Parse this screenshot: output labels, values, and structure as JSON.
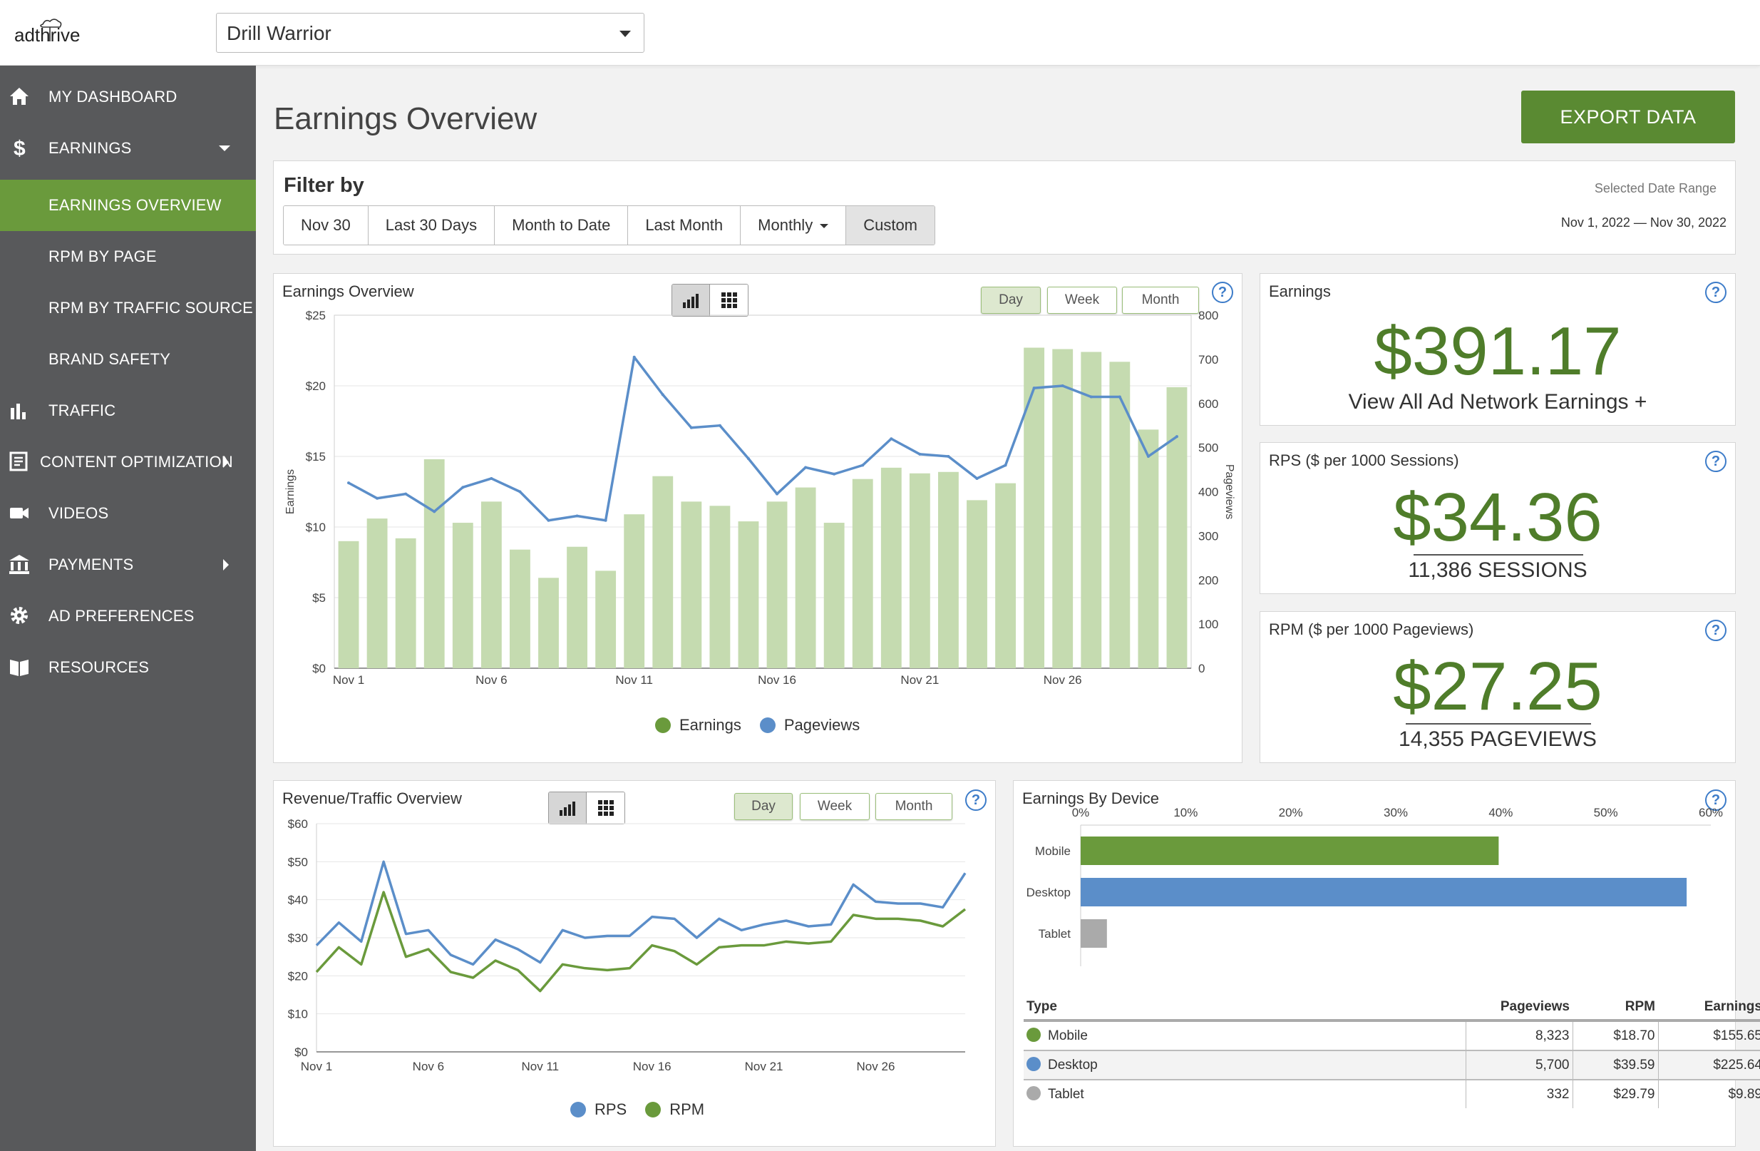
{
  "brand": {
    "logo_text": "adthrive"
  },
  "site_select": {
    "value": "Drill Warrior"
  },
  "sidebar": {
    "items": [
      {
        "label": "MY DASHBOARD",
        "icon": "home-icon"
      },
      {
        "label": "EARNINGS",
        "icon": "dollar-icon"
      },
      {
        "label": "EARNINGS OVERVIEW",
        "active": true
      },
      {
        "label": "RPM BY PAGE"
      },
      {
        "label": "RPM BY TRAFFIC SOURCE"
      },
      {
        "label": "BRAND SAFETY"
      },
      {
        "label": "TRAFFIC",
        "icon": "bar-chart-icon"
      },
      {
        "label": "CONTENT OPTIMIZATION",
        "icon": "document-icon"
      },
      {
        "label": "VIDEOS",
        "icon": "video-camera-icon"
      },
      {
        "label": "PAYMENTS",
        "icon": "bank-icon"
      },
      {
        "label": "AD PREFERENCES",
        "icon": "gear-icon"
      },
      {
        "label": "RESOURCES",
        "icon": "book-icon"
      }
    ]
  },
  "page": {
    "title": "Earnings Overview",
    "export_label": "EXPORT DATA"
  },
  "filter": {
    "title": "Filter by",
    "options": [
      "Nov 30",
      "Last 30 Days",
      "Month to Date",
      "Last Month",
      "Monthly",
      "Custom"
    ],
    "selected": "Custom",
    "date_range_label": "Selected Date Range",
    "date_range_value": "Nov 1, 2022 — Nov 30, 2022"
  },
  "periods": [
    "Day",
    "Week",
    "Month"
  ],
  "selected_period": "Day",
  "earnings_chart": {
    "title": "Earnings Overview",
    "legend": [
      "Earnings",
      "Pageviews"
    ]
  },
  "revenue_chart": {
    "title": "Revenue/Traffic Overview",
    "legend": [
      "RPS",
      "RPM"
    ]
  },
  "stats": {
    "earnings": {
      "title": "Earnings",
      "value": "$391.17",
      "link": "View All Ad Network Earnings +"
    },
    "rps": {
      "title": "RPS ($ per 1000 Sessions)",
      "value": "$34.36",
      "sub": "11,386 SESSIONS"
    },
    "rpm": {
      "title": "RPM ($ per 1000 Pageviews)",
      "value": "$27.25",
      "sub": "14,355 PAGEVIEWS"
    }
  },
  "device": {
    "title": "Earnings By Device",
    "table_headers": [
      "Type",
      "Pageviews",
      "RPM",
      "Earnings"
    ],
    "rows": [
      {
        "type": "Mobile",
        "pageviews": "8,323",
        "rpm": "$18.70",
        "earnings": "$155.65"
      },
      {
        "type": "Desktop",
        "pageviews": "5,700",
        "rpm": "$39.59",
        "earnings": "$225.64"
      },
      {
        "type": "Tablet",
        "pageviews": "332",
        "rpm": "$29.79",
        "earnings": "$9.89"
      }
    ]
  },
  "colors": {
    "green": "#6a9a3c",
    "bar_green": "#c5dbb0",
    "blue": "#5b8ec9",
    "gray": "#aaaaaa",
    "sidebar": "#58595b"
  },
  "chart_data": [
    {
      "type": "bar",
      "title": "",
      "xlabel": "",
      "ylabel": "Earnings",
      "y2label": "Pageviews",
      "x": [
        "Nov 1",
        "Nov 2",
        "Nov 3",
        "Nov 4",
        "Nov 5",
        "Nov 6",
        "Nov 7",
        "Nov 8",
        "Nov 9",
        "Nov 10",
        "Nov 11",
        "Nov 12",
        "Nov 13",
        "Nov 14",
        "Nov 15",
        "Nov 16",
        "Nov 17",
        "Nov 18",
        "Nov 19",
        "Nov 20",
        "Nov 21",
        "Nov 22",
        "Nov 23",
        "Nov 24",
        "Nov 25",
        "Nov 26",
        "Nov 27",
        "Nov 28",
        "Nov 29",
        "Nov 30"
      ],
      "xticks": [
        "Nov 1",
        "Nov 6",
        "Nov 11",
        "Nov 16",
        "Nov 21",
        "Nov 26"
      ],
      "yticks": [
        "$0",
        "$5",
        "$10",
        "$15",
        "$20",
        "$25"
      ],
      "y2ticks": [
        "0",
        "100",
        "200",
        "300",
        "400",
        "500",
        "600",
        "700",
        "800"
      ],
      "ylim": [
        0,
        25
      ],
      "y2lim": [
        0,
        800
      ],
      "series": [
        {
          "name": "Earnings",
          "kind": "bar",
          "axis": "left",
          "values": [
            9.0,
            10.6,
            9.2,
            14.8,
            10.3,
            11.8,
            8.4,
            6.4,
            8.6,
            6.9,
            10.9,
            13.6,
            11.8,
            11.5,
            10.4,
            11.8,
            12.8,
            10.3,
            13.4,
            14.2,
            13.8,
            13.9,
            11.9,
            13.1,
            22.7,
            22.6,
            22.4,
            21.7,
            16.9,
            19.9
          ]
        },
        {
          "name": "Pageviews",
          "kind": "line",
          "axis": "right",
          "values": [
            420,
            385,
            395,
            355,
            410,
            430,
            400,
            335,
            345,
            335,
            705,
            620,
            545,
            550,
            475,
            395,
            455,
            440,
            460,
            520,
            485,
            480,
            430,
            460,
            635,
            640,
            615,
            615,
            480,
            525
          ]
        }
      ]
    },
    {
      "type": "line",
      "title": "",
      "xlabel": "",
      "ylabel": "",
      "x": [
        "Nov 1",
        "Nov 2",
        "Nov 3",
        "Nov 4",
        "Nov 5",
        "Nov 6",
        "Nov 7",
        "Nov 8",
        "Nov 9",
        "Nov 10",
        "Nov 11",
        "Nov 12",
        "Nov 13",
        "Nov 14",
        "Nov 15",
        "Nov 16",
        "Nov 17",
        "Nov 18",
        "Nov 19",
        "Nov 20",
        "Nov 21",
        "Nov 22",
        "Nov 23",
        "Nov 24",
        "Nov 25",
        "Nov 26",
        "Nov 27",
        "Nov 28",
        "Nov 29",
        "Nov 30"
      ],
      "xticks": [
        "Nov 1",
        "Nov 6",
        "Nov 11",
        "Nov 16",
        "Nov 21",
        "Nov 26"
      ],
      "yticks": [
        "$0",
        "$10",
        "$20",
        "$30",
        "$40",
        "$50",
        "$60"
      ],
      "ylim": [
        0,
        60
      ],
      "series": [
        {
          "name": "RPS",
          "values": [
            28,
            34,
            29,
            50,
            31,
            32,
            25.5,
            23,
            29.5,
            27,
            23.5,
            32,
            30,
            30.5,
            30.5,
            35.5,
            35,
            30,
            35,
            32,
            33.5,
            34.5,
            33,
            33.5,
            44,
            39.5,
            39,
            39,
            38,
            47
          ]
        },
        {
          "name": "RPM",
          "values": [
            21,
            27.5,
            23,
            42,
            25,
            27,
            21,
            19.5,
            24,
            21.5,
            16,
            23,
            22,
            21.5,
            22,
            28,
            26.5,
            23,
            27.5,
            28,
            28,
            29,
            28.5,
            29,
            36,
            35,
            35,
            34.5,
            33,
            37.5
          ]
        }
      ]
    },
    {
      "type": "bar",
      "orientation": "horizontal",
      "title": "",
      "categories": [
        "Mobile",
        "Desktop",
        "Tablet"
      ],
      "values": [
        39.8,
        57.7,
        2.5
      ],
      "xticks": [
        "0%",
        "10%",
        "20%",
        "30%",
        "40%",
        "50%",
        "60%"
      ],
      "xlim": [
        0,
        60
      ]
    }
  ]
}
